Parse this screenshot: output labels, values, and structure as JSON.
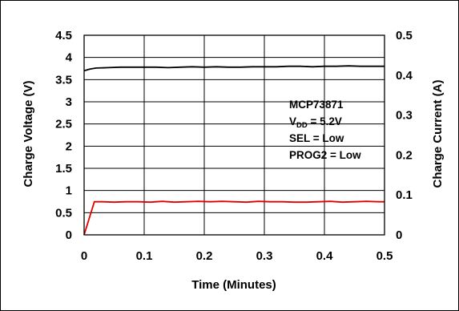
{
  "chart_data": {
    "type": "line",
    "title": "",
    "xlabel": "Time (Minutes)",
    "ylabel_left": "Charge Voltage (V)",
    "ylabel_right": "Charge Current (A)",
    "xlim": [
      0,
      0.5
    ],
    "ylim_left": [
      0,
      4.5
    ],
    "ylim_right": [
      0,
      0.5
    ],
    "x_ticks": [
      "0",
      "0.1",
      "0.2",
      "0.3",
      "0.4",
      "0.5"
    ],
    "y_left_ticks": [
      "0",
      "0.5",
      "1",
      "1.5",
      "2",
      "2.5",
      "3",
      "3.5",
      "4",
      "4.5"
    ],
    "y_right_ticks": [
      "0",
      "0.1",
      "0.2",
      "0.3",
      "0.4",
      "0.5"
    ],
    "grid": true,
    "annotation": {
      "line1": "MCP73871",
      "line2_main": "V",
      "line2_sub": "DD",
      "line2_rest": " = 5.2V",
      "line3": "SEL = Low",
      "line4": "PROG2 = Low"
    },
    "series": [
      {
        "axis": "left",
        "color": "#000000",
        "x": [
          0,
          0.01,
          0.02,
          0.04,
          0.06,
          0.08,
          0.1,
          0.12,
          0.14,
          0.16,
          0.18,
          0.2,
          0.22,
          0.24,
          0.26,
          0.28,
          0.3,
          0.32,
          0.34,
          0.36,
          0.38,
          0.4,
          0.42,
          0.44,
          0.46,
          0.48,
          0.5
        ],
        "y": [
          3.7,
          3.74,
          3.76,
          3.77,
          3.78,
          3.78,
          3.78,
          3.78,
          3.77,
          3.78,
          3.79,
          3.78,
          3.79,
          3.78,
          3.78,
          3.79,
          3.79,
          3.79,
          3.8,
          3.8,
          3.79,
          3.8,
          3.8,
          3.81,
          3.8,
          3.8,
          3.8
        ]
      },
      {
        "axis": "right",
        "color": "#e00000",
        "x": [
          0,
          0.017,
          0.03,
          0.05,
          0.07,
          0.09,
          0.11,
          0.13,
          0.15,
          0.17,
          0.19,
          0.21,
          0.23,
          0.25,
          0.27,
          0.29,
          0.31,
          0.33,
          0.35,
          0.37,
          0.39,
          0.41,
          0.43,
          0.45,
          0.47,
          0.49,
          0.5
        ],
        "y": [
          0,
          0.083,
          0.083,
          0.082,
          0.083,
          0.083,
          0.082,
          0.084,
          0.082,
          0.083,
          0.084,
          0.083,
          0.084,
          0.083,
          0.082,
          0.084,
          0.083,
          0.083,
          0.082,
          0.082,
          0.083,
          0.084,
          0.082,
          0.083,
          0.084,
          0.083,
          0.083
        ]
      }
    ]
  }
}
